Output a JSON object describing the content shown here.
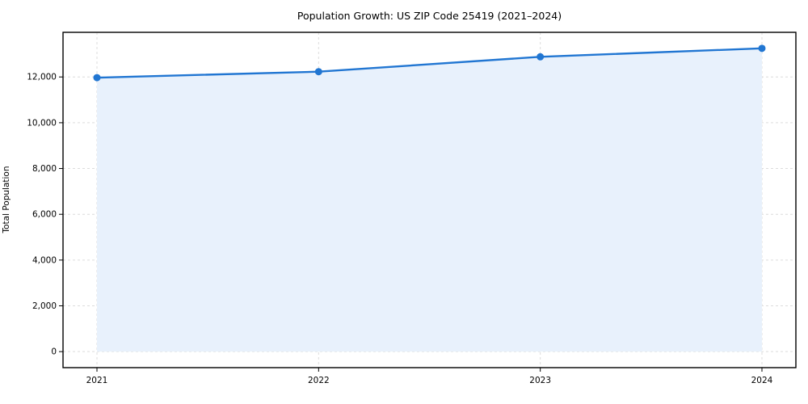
{
  "chart_data": {
    "type": "area",
    "title": "Population Growth: US ZIP Code 25419 (2021–2024)",
    "ylabel": "Total Population",
    "xlabel": "",
    "x": [
      "2021",
      "2022",
      "2023",
      "2024"
    ],
    "series": [
      {
        "name": "Total Population",
        "values": [
          11970,
          12230,
          12880,
          13250
        ]
      }
    ],
    "yticks": [
      0,
      2000,
      4000,
      6000,
      8000,
      10000,
      12000
    ],
    "ylim": [
      -700,
      13950
    ],
    "grid": true,
    "legend": "none",
    "line_color": "#2176d2",
    "fill_color": "#e8f1fc",
    "marker": "circle",
    "background_color": "#ffffff"
  }
}
